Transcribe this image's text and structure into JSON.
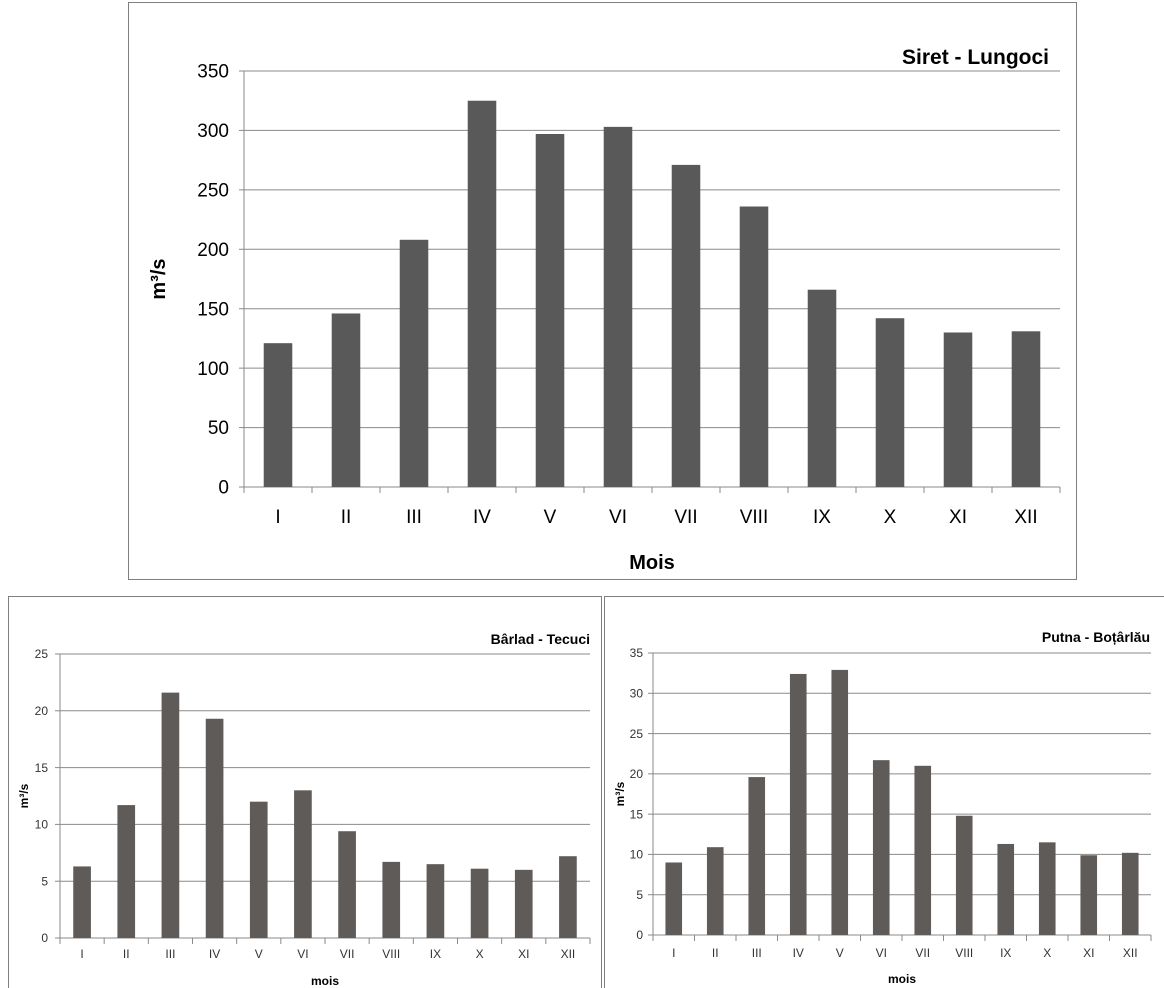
{
  "colors": {
    "bar_main": "#595959",
    "bar_small": "#5f5b58",
    "grid": "#8a8a8a",
    "border": "#7f7f7f",
    "text": "#000000"
  },
  "chart_data": [
    {
      "type": "bar",
      "title": "Siret - Lungoci",
      "xlabel": "Mois",
      "ylabel": "m³/s",
      "categories": [
        "I",
        "II",
        "III",
        "IV",
        "V",
        "VI",
        "VII",
        "VIII",
        "IX",
        "X",
        "XI",
        "XII"
      ],
      "values": [
        121,
        146,
        208,
        325,
        297,
        303,
        271,
        236,
        166,
        142,
        130,
        131
      ],
      "ylim": [
        0,
        350
      ],
      "yticks": [
        0,
        50,
        100,
        150,
        200,
        250,
        300,
        350
      ],
      "grid": true,
      "legend": "none"
    },
    {
      "type": "bar",
      "title": "Bârlad - Tecuci",
      "xlabel": "mois",
      "ylabel": "m³/s",
      "categories": [
        "I",
        "II",
        "III",
        "IV",
        "V",
        "VI",
        "VII",
        "VIII",
        "IX",
        "X",
        "XI",
        "XII"
      ],
      "values": [
        6.3,
        11.7,
        21.6,
        19.3,
        12.0,
        13.0,
        9.4,
        6.7,
        6.5,
        6.1,
        6.0,
        7.2
      ],
      "ylim": [
        0,
        25
      ],
      "yticks": [
        0,
        5,
        10,
        15,
        20,
        25
      ],
      "grid": true,
      "legend": "none"
    },
    {
      "type": "bar",
      "title": "Putna - Boțârlău",
      "xlabel": "mois",
      "ylabel": "m³/s",
      "categories": [
        "I",
        "II",
        "III",
        "IV",
        "V",
        "VI",
        "VII",
        "VIII",
        "IX",
        "X",
        "XI",
        "XII"
      ],
      "values": [
        9.0,
        10.9,
        19.6,
        32.4,
        32.9,
        21.7,
        21.0,
        14.8,
        11.3,
        11.5,
        9.9,
        10.2
      ],
      "ylim": [
        0,
        35
      ],
      "yticks": [
        0,
        5,
        10,
        15,
        20,
        25,
        30,
        35
      ],
      "grid": true,
      "legend": "none"
    }
  ]
}
